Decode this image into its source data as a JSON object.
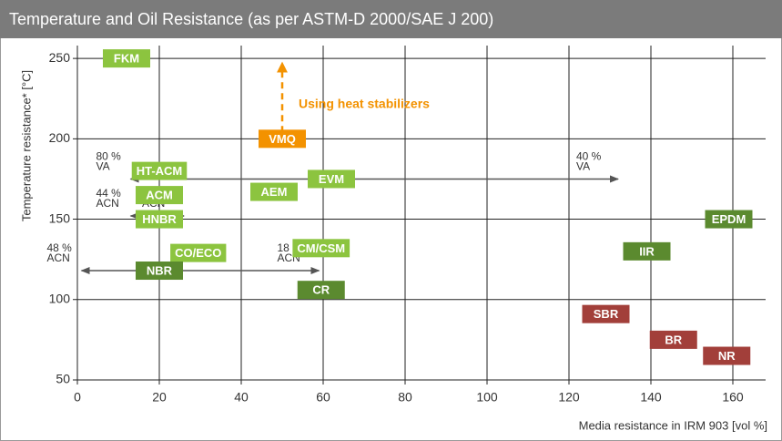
{
  "chart_data": {
    "type": "scatter",
    "title": "Temperature and Oil Resistance (as per ASTM-D 2000/SAE J 200)",
    "x_label": "Media resistance in IRM 903 [vol %]",
    "y_label": "Temperature resistance* [°C]",
    "xlim": [
      0,
      168
    ],
    "ylim": [
      50,
      258
    ],
    "xticks": [
      0,
      20,
      40,
      60,
      80,
      100,
      120,
      140,
      160
    ],
    "yticks": [
      50,
      100,
      150,
      200,
      250
    ],
    "grid": true,
    "points": [
      {
        "name": "FKM",
        "x": 12,
        "y": 250,
        "color": "#8cc43f"
      },
      {
        "name": "VMQ",
        "x": 50,
        "y": 200,
        "color": "#f39200"
      },
      {
        "name": "HT-ACM",
        "x": 20,
        "y": 180,
        "color": "#8cc43f"
      },
      {
        "name": "ACM",
        "x": 20,
        "y": 165,
        "color": "#8cc43f"
      },
      {
        "name": "HNBR",
        "x": 20,
        "y": 150,
        "color": "#8cc43f"
      },
      {
        "name": "AEM",
        "x": 48,
        "y": 167,
        "color": "#8cc43f"
      },
      {
        "name": "EVM",
        "x": 62,
        "y": 175,
        "color": "#8cc43f"
      },
      {
        "name": "CO/ECO",
        "x": 29.5,
        "y": 129,
        "color": "#8cc43f"
      },
      {
        "name": "CM/CSM",
        "x": 59.5,
        "y": 132,
        "color": "#8cc43f"
      },
      {
        "name": "NBR",
        "x": 20,
        "y": 118,
        "color": "#5b8a2f"
      },
      {
        "name": "CR",
        "x": 59.5,
        "y": 106,
        "color": "#5b8a2f"
      },
      {
        "name": "EPDM",
        "x": 159,
        "y": 150,
        "color": "#5b8a2f"
      },
      {
        "name": "IIR",
        "x": 139,
        "y": 130,
        "color": "#5b8a2f"
      },
      {
        "name": "SBR",
        "x": 129,
        "y": 91,
        "color": "#a23f3a"
      },
      {
        "name": "BR",
        "x": 145.5,
        "y": 75,
        "color": "#a23f3a"
      },
      {
        "name": "NR",
        "x": 158.5,
        "y": 65,
        "color": "#a23f3a"
      }
    ],
    "arrows": [
      {
        "x0": 13,
        "x1": 132,
        "y": 175,
        "left_label": [
          "80 %",
          "VA"
        ],
        "right_label": [
          "40 %",
          "VA"
        ]
      },
      {
        "x0": 13,
        "x1": 26,
        "y": 152,
        "left_label": [
          "44 %",
          "ACN"
        ],
        "right_label": [
          "34 %",
          "ACN"
        ]
      },
      {
        "x0": 1,
        "x1": 59,
        "y": 118,
        "left_label": [
          "48 %",
          "ACN"
        ],
        "right_label": [
          "18 %",
          "ACN"
        ]
      }
    ],
    "stabilizer": {
      "x": 50,
      "y0": 204,
      "y1": 248,
      "label": "Using  heat stabilizers",
      "color": "#f39200"
    }
  }
}
